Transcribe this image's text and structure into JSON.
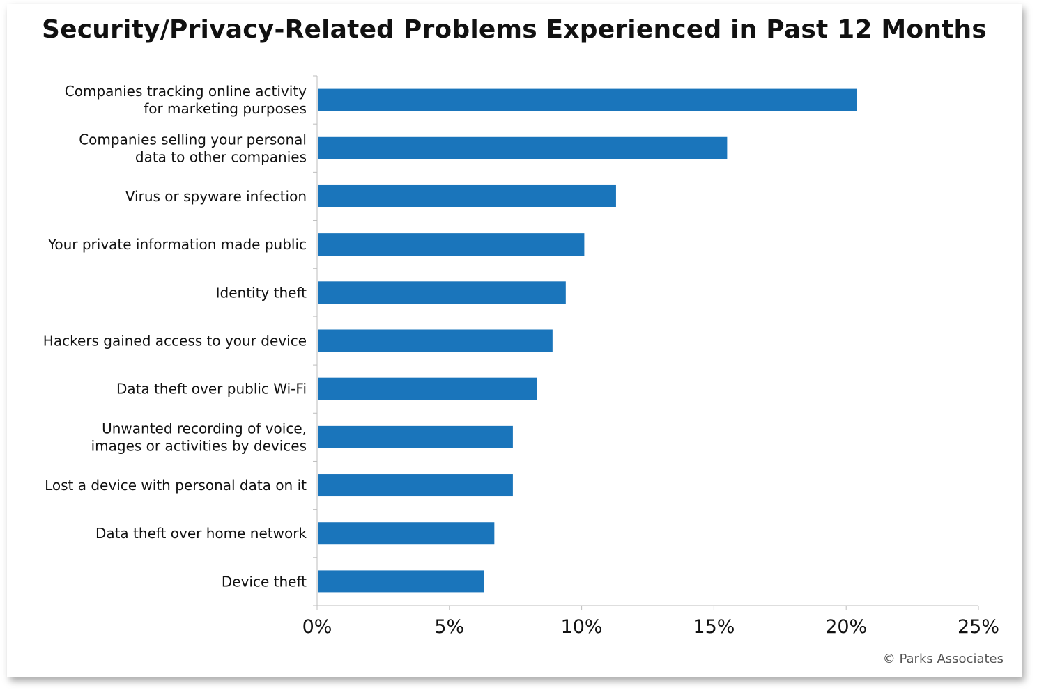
{
  "chart_data": {
    "type": "bar",
    "orientation": "horizontal",
    "title": "Security/Privacy-Related Problems Experienced in Past 12 Months",
    "categories": [
      [
        "Companies tracking online activity",
        "for marketing purposes"
      ],
      [
        "Companies selling your personal",
        "data to other companies"
      ],
      [
        "Virus or spyware infection"
      ],
      [
        "Your private information made public"
      ],
      [
        "Identity theft"
      ],
      [
        "Hackers gained access to your device"
      ],
      [
        "Data theft over public Wi-Fi"
      ],
      [
        "Unwanted recording of voice,",
        "images or activities by devices"
      ],
      [
        "Lost a device with personal data on it"
      ],
      [
        "Data theft over home network"
      ],
      [
        "Device theft"
      ]
    ],
    "values": [
      20.4,
      15.5,
      11.3,
      10.1,
      9.4,
      8.9,
      8.3,
      7.4,
      7.4,
      6.7,
      6.3
    ],
    "xlim": [
      0,
      25
    ],
    "ticks": [
      0,
      5,
      10,
      15,
      20,
      25
    ],
    "tick_labels": [
      "0%",
      "5%",
      "10%",
      "15%",
      "20%",
      "25%"
    ],
    "grid": false,
    "bar_color": "#1a75bb"
  },
  "footer": {
    "copyright": "© Parks Associates"
  }
}
